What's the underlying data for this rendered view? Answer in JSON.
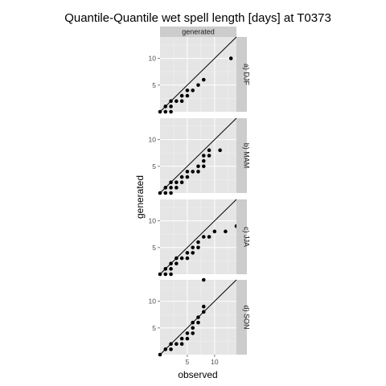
{
  "chart_data": {
    "type": "scatter",
    "title": "Quantile-Quantile wet spell length [days] at T0373",
    "xlabel": "observed",
    "ylabel": "generated",
    "column_strip": "generated",
    "xlim": [
      0,
      14
    ],
    "ylim": [
      0,
      14
    ],
    "x_ticks": [
      5,
      10
    ],
    "y_ticks": [
      5,
      10
    ],
    "grid": true,
    "reference_line": "y = x",
    "panels": [
      {
        "label": "a) DJF",
        "points": [
          [
            0,
            0
          ],
          [
            1,
            0
          ],
          [
            2,
            0
          ],
          [
            1,
            1
          ],
          [
            2,
            1
          ],
          [
            2,
            2
          ],
          [
            3,
            2
          ],
          [
            4,
            2
          ],
          [
            4,
            3
          ],
          [
            5,
            3
          ],
          [
            5,
            4
          ],
          [
            6,
            4
          ],
          [
            7,
            5
          ],
          [
            8,
            6
          ],
          [
            13,
            10
          ]
        ]
      },
      {
        "label": "b) MAM",
        "points": [
          [
            0,
            0
          ],
          [
            1,
            0
          ],
          [
            1,
            1
          ],
          [
            2,
            0
          ],
          [
            2,
            1
          ],
          [
            2,
            2
          ],
          [
            3,
            1
          ],
          [
            3,
            2
          ],
          [
            4,
            2
          ],
          [
            4,
            3
          ],
          [
            5,
            3
          ],
          [
            5,
            4
          ],
          [
            6,
            4
          ],
          [
            7,
            4
          ],
          [
            7,
            5
          ],
          [
            8,
            5
          ],
          [
            8,
            6
          ],
          [
            8,
            7
          ],
          [
            9,
            7
          ],
          [
            9,
            8
          ],
          [
            11,
            8
          ]
        ]
      },
      {
        "label": "c) JJA",
        "points": [
          [
            0,
            0
          ],
          [
            1,
            0
          ],
          [
            1,
            1
          ],
          [
            2,
            0
          ],
          [
            2,
            1
          ],
          [
            2,
            2
          ],
          [
            3,
            2
          ],
          [
            3,
            3
          ],
          [
            4,
            3
          ],
          [
            5,
            3
          ],
          [
            5,
            4
          ],
          [
            6,
            4
          ],
          [
            6,
            5
          ],
          [
            7,
            5
          ],
          [
            7,
            6
          ],
          [
            8,
            7
          ],
          [
            9,
            7
          ],
          [
            10,
            8
          ],
          [
            12,
            8
          ],
          [
            14,
            9
          ]
        ]
      },
      {
        "label": "d) SON",
        "points": [
          [
            0,
            0
          ],
          [
            1,
            1
          ],
          [
            2,
            1
          ],
          [
            2,
            2
          ],
          [
            3,
            2
          ],
          [
            4,
            2
          ],
          [
            4,
            3
          ],
          [
            5,
            3
          ],
          [
            5,
            4
          ],
          [
            6,
            4
          ],
          [
            6,
            5
          ],
          [
            6,
            6
          ],
          [
            7,
            6
          ],
          [
            7,
            7
          ],
          [
            8,
            8
          ],
          [
            8,
            9
          ],
          [
            8,
            14
          ]
        ]
      }
    ]
  }
}
